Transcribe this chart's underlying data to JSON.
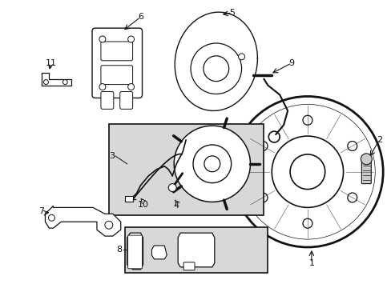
{
  "bg_color": "#ffffff",
  "line_color": "#111111",
  "box_bg": "#d8d8d8",
  "figsize": [
    4.89,
    3.6
  ],
  "dpi": 100
}
